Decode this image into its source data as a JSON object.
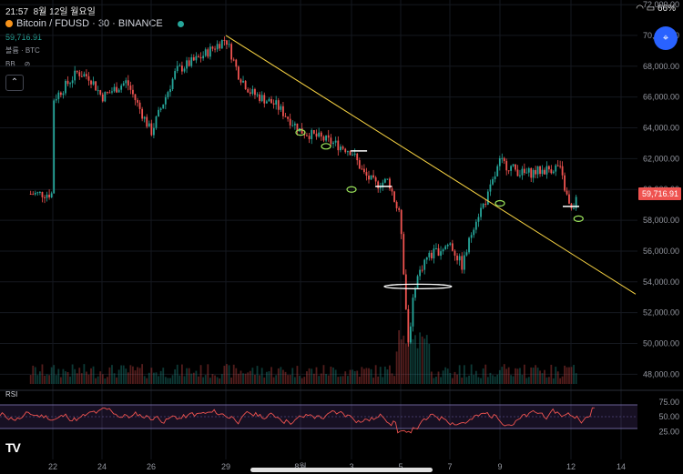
{
  "status_bar": {
    "time": "21:57",
    "date": "8월 12일 월요일",
    "battery": "66%"
  },
  "header": {
    "symbol": "Bitcoin / FDUSD · 30 · BINANCE",
    "last_price": "59,716.91",
    "volume_label": "볼륨 · BTC",
    "indicator_label": "BB"
  },
  "colors": {
    "up": "#26a69a",
    "down": "#ef5350",
    "trendline": "#f5d142",
    "rsi_line": "#ef5350",
    "rsi_band": "#7e57c2",
    "price_tag": "#ef5350"
  },
  "chart_data": {
    "type": "candlestick",
    "title": "Bitcoin / FDUSD · 30 · BINANCE",
    "x_ticks": [
      "22",
      "24",
      "26",
      "29",
      "8월",
      "3",
      "5",
      "7",
      "9",
      "12",
      "14"
    ],
    "y_ticks": [
      "72,000.00",
      "70,000.00",
      "68,000.00",
      "66,000.00",
      "64,000.00",
      "62,000.00",
      "60,000.00",
      "58,000.00",
      "56,000.00",
      "54,000.00",
      "52,000.00",
      "50,000.00",
      "48,000.00"
    ],
    "ylim": [
      46900,
      72300
    ],
    "last_price_tag": "59,716.91",
    "close_path": [
      [
        "22",
        65800
      ],
      [
        "23",
        67600
      ],
      [
        "23.5",
        67300
      ],
      [
        "24",
        66000
      ],
      [
        "25",
        67000
      ],
      [
        "26",
        63700
      ],
      [
        "27",
        67700
      ],
      [
        "28",
        68600
      ],
      [
        "29",
        69800
      ],
      [
        "29.5",
        67500
      ],
      [
        "30",
        66300
      ],
      [
        "31",
        65500
      ],
      [
        "8월",
        63800
      ],
      [
        "2",
        63200
      ],
      [
        "3",
        62500
      ],
      [
        "3.5",
        61000
      ],
      [
        "4",
        60300
      ],
      [
        "4.5",
        60600
      ],
      [
        "5",
        58000
      ],
      [
        "5.3",
        50000
      ],
      [
        "5.6",
        54000
      ],
      [
        "6",
        55500
      ],
      [
        "7",
        56500
      ],
      [
        "7.5",
        55000
      ],
      [
        "8",
        58000
      ],
      [
        "8.5",
        59500
      ],
      [
        "9",
        61800
      ],
      [
        "10",
        61000
      ],
      [
        "11",
        61300
      ],
      [
        "11.5",
        61500
      ],
      [
        "12",
        58500
      ],
      [
        "12.3",
        59716.91
      ]
    ],
    "trendline": [
      [
        "29",
        70000
      ],
      [
        "14",
        53200
      ]
    ],
    "annotations": [
      {
        "type": "ellipse",
        "at": [
          "8월",
          63700
        ]
      },
      {
        "type": "ellipse",
        "at": [
          "2",
          62800
        ]
      },
      {
        "type": "ellipse",
        "at": [
          "3",
          60000
        ]
      },
      {
        "type": "ellipse",
        "at": [
          "5.7",
          53700
        ]
      },
      {
        "type": "ellipse",
        "at": [
          "9",
          59100
        ]
      },
      {
        "type": "ellipse",
        "at": [
          "12.3",
          58100
        ]
      },
      {
        "type": "level",
        "at": [
          "3.3",
          62500
        ]
      },
      {
        "type": "level",
        "at": [
          "4.3",
          60200
        ]
      },
      {
        "type": "level",
        "at": [
          "12",
          58900
        ]
      }
    ],
    "volume": {
      "visible": true
    },
    "rsi": {
      "label": "RSI",
      "y_ticks": [
        "75.00",
        "50.00",
        "25.00"
      ],
      "ylim": [
        10,
        90
      ],
      "upper_band": 70,
      "lower_band": 30,
      "last_value": 65
    }
  }
}
